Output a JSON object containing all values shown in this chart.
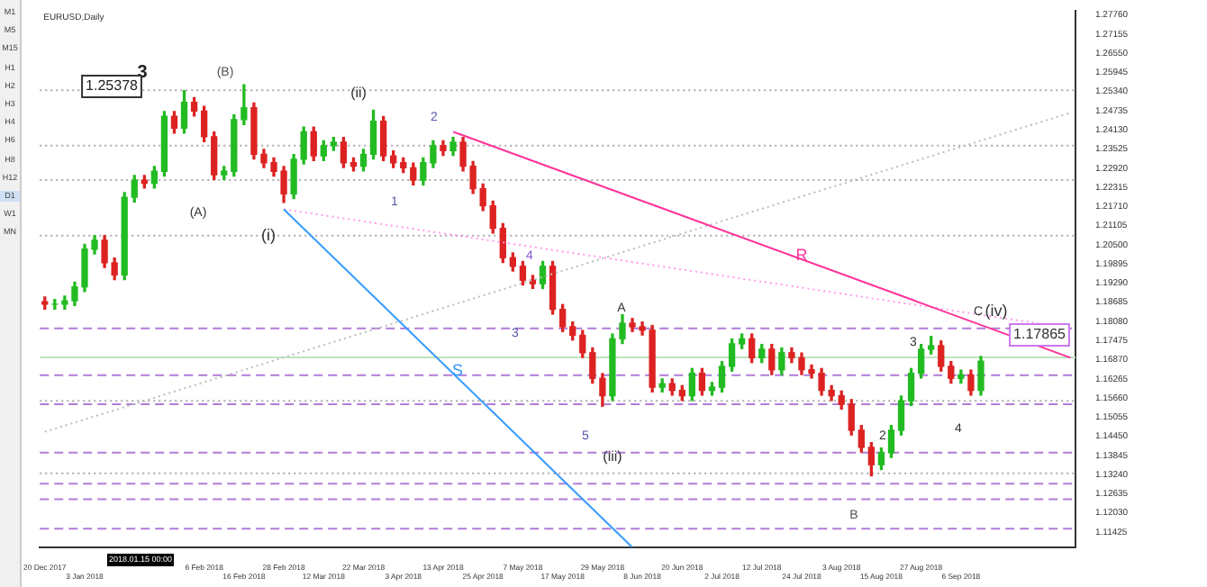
{
  "chart_data": {
    "type": "candlestick",
    "title": "EURUSD,Daily",
    "categories": [
      "20 Dec 2017",
      null,
      null,
      null,
      "3 Jan 2018",
      null,
      null,
      null,
      null,
      null,
      null,
      null,
      null,
      null,
      null,
      null,
      "6 Feb 2018",
      null,
      null,
      null,
      "16 Feb 2018",
      null,
      null,
      null,
      "28 Feb 2018",
      null,
      null,
      null,
      "12 Mar 2018",
      null,
      null,
      null,
      "22 Mar 2018",
      null,
      null,
      null,
      "3 Apr 2018",
      null,
      null,
      null,
      "13 Apr 2018",
      null,
      null,
      null,
      "25 Apr 2018",
      null,
      null,
      null,
      "7 May 2018",
      null,
      null,
      null,
      "17 May 2018",
      null,
      null,
      null,
      "29 May 2018",
      null,
      null,
      null,
      "8 Jun 2018",
      null,
      null,
      null,
      "20 Jun 2018",
      null,
      null,
      null,
      "2 Jul 2018",
      null,
      null,
      null,
      "12 Jul 2018",
      null,
      null,
      null,
      "24 Jul 2018",
      null,
      null,
      null,
      "3 Aug 2018",
      null,
      null,
      null,
      "15 Aug 2018",
      null,
      null,
      null,
      "27 Aug 2018",
      null,
      null,
      null,
      "6 Sep 2018",
      null,
      null,
      null,
      null,
      null,
      null,
      null,
      null,
      null,
      null,
      null
    ],
    "ohlc": [
      [
        1.187,
        1.1885,
        1.1847,
        1.1862
      ],
      [
        1.1862,
        1.1877,
        1.1847,
        1.1862
      ],
      [
        1.1862,
        1.1888,
        1.1847,
        1.1873
      ],
      [
        1.1873,
        1.1932,
        1.1858,
        1.1917
      ],
      [
        1.1917,
        1.2051,
        1.1902,
        1.2036
      ],
      [
        1.2036,
        1.2079,
        1.2021,
        1.2064
      ],
      [
        1.2064,
        1.2079,
        1.1978,
        1.1993
      ],
      [
        1.1993,
        1.2008,
        1.194,
        1.1955
      ],
      [
        1.1955,
        1.2215,
        1.194,
        1.22
      ],
      [
        1.22,
        1.2269,
        1.2185,
        1.2254
      ],
      [
        1.2254,
        1.2269,
        1.2229,
        1.2244
      ],
      [
        1.2244,
        1.2297,
        1.2229,
        1.2282
      ],
      [
        1.2282,
        1.2471,
        1.2267,
        1.2456
      ],
      [
        1.2456,
        1.2471,
        1.2403,
        1.2418
      ],
      [
        1.2418,
        1.2537,
        1.2403,
        1.25
      ],
      [
        1.25,
        1.2515,
        1.2457,
        1.2472
      ],
      [
        1.2472,
        1.2487,
        1.2376,
        1.2391
      ],
      [
        1.2391,
        1.2406,
        1.2256,
        1.2271
      ],
      [
        1.2271,
        1.2297,
        1.2256,
        1.2282
      ],
      [
        1.2282,
        1.246,
        1.2267,
        1.2445
      ],
      [
        1.2445,
        1.2555,
        1.243,
        1.2483
      ],
      [
        1.2483,
        1.2498,
        1.2321,
        1.2336
      ],
      [
        1.2336,
        1.2351,
        1.2294,
        1.2309
      ],
      [
        1.2309,
        1.2324,
        1.2267,
        1.2282
      ],
      [
        1.2282,
        1.2297,
        1.2184,
        1.2211
      ],
      [
        1.2211,
        1.2335,
        1.2196,
        1.232
      ],
      [
        1.232,
        1.2422,
        1.2305,
        1.2407
      ],
      [
        1.2407,
        1.2422,
        1.2316,
        1.2331
      ],
      [
        1.2331,
        1.2378,
        1.2316,
        1.2363
      ],
      [
        1.2363,
        1.2389,
        1.2348,
        1.2374
      ],
      [
        1.2374,
        1.2389,
        1.2294,
        1.2309
      ],
      [
        1.2309,
        1.2324,
        1.2283,
        1.2298
      ],
      [
        1.2298,
        1.2351,
        1.2283,
        1.2336
      ],
      [
        1.2336,
        1.2475,
        1.2321,
        1.244
      ],
      [
        1.244,
        1.2455,
        1.2316,
        1.2331
      ],
      [
        1.2331,
        1.2346,
        1.2294,
        1.2309
      ],
      [
        1.2309,
        1.2324,
        1.2278,
        1.2293
      ],
      [
        1.2293,
        1.2308,
        1.2239,
        1.2254
      ],
      [
        1.2254,
        1.2324,
        1.2239,
        1.2309
      ],
      [
        1.2309,
        1.2378,
        1.2294,
        1.2363
      ],
      [
        1.2363,
        1.2378,
        1.2332,
        1.2347
      ],
      [
        1.2347,
        1.2389,
        1.2332,
        1.2374
      ],
      [
        1.2374,
        1.2389,
        1.2283,
        1.2298
      ],
      [
        1.2298,
        1.2313,
        1.2212,
        1.2227
      ],
      [
        1.2227,
        1.2242,
        1.2158,
        1.2173
      ],
      [
        1.2173,
        1.2188,
        1.2087,
        1.2102
      ],
      [
        1.2102,
        1.2117,
        1.1994,
        1.2009
      ],
      [
        1.2009,
        1.2024,
        1.1967,
        1.1982
      ],
      [
        1.1982,
        1.1997,
        1.1923,
        1.1938
      ],
      [
        1.1938,
        1.1953,
        1.1912,
        1.1927
      ],
      [
        1.1927,
        1.1997,
        1.1912,
        1.1982
      ],
      [
        1.1982,
        1.1997,
        1.1831,
        1.1846
      ],
      [
        1.1846,
        1.1861,
        1.1776,
        1.1791
      ],
      [
        1.1791,
        1.1806,
        1.1749,
        1.1764
      ],
      [
        1.1764,
        1.1779,
        1.1694,
        1.1709
      ],
      [
        1.1709,
        1.1724,
        1.1613,
        1.1628
      ],
      [
        1.1628,
        1.1643,
        1.154,
        1.1573
      ],
      [
        1.1573,
        1.1768,
        1.1558,
        1.1753
      ],
      [
        1.1753,
        1.1829,
        1.1738,
        1.1802
      ],
      [
        1.1802,
        1.1817,
        1.1776,
        1.1791
      ],
      [
        1.1791,
        1.1806,
        1.1765,
        1.178
      ],
      [
        1.178,
        1.1795,
        1.1585,
        1.16
      ],
      [
        1.16,
        1.1626,
        1.1585,
        1.1611
      ],
      [
        1.1611,
        1.1626,
        1.1575,
        1.159
      ],
      [
        1.159,
        1.1605,
        1.1558,
        1.1573
      ],
      [
        1.1573,
        1.1659,
        1.1558,
        1.1644
      ],
      [
        1.1644,
        1.1659,
        1.1575,
        1.159
      ],
      [
        1.159,
        1.1615,
        1.1575,
        1.16
      ],
      [
        1.16,
        1.1681,
        1.1585,
        1.1666
      ],
      [
        1.1666,
        1.1752,
        1.1651,
        1.1737
      ],
      [
        1.1737,
        1.1768,
        1.1722,
        1.1753
      ],
      [
        1.1753,
        1.1768,
        1.1678,
        1.1693
      ],
      [
        1.1693,
        1.1735,
        1.1678,
        1.172
      ],
      [
        1.172,
        1.1735,
        1.164,
        1.1655
      ],
      [
        1.1655,
        1.1724,
        1.164,
        1.1709
      ],
      [
        1.1709,
        1.1724,
        1.1678,
        1.1693
      ],
      [
        1.1693,
        1.1708,
        1.164,
        1.1655
      ],
      [
        1.1655,
        1.167,
        1.1629,
        1.1644
      ],
      [
        1.1644,
        1.1659,
        1.1575,
        1.159
      ],
      [
        1.159,
        1.1605,
        1.1558,
        1.1573
      ],
      [
        1.1573,
        1.1588,
        1.1531,
        1.1546
      ],
      [
        1.1546,
        1.1561,
        1.1449,
        1.1464
      ],
      [
        1.1464,
        1.1479,
        1.1395,
        1.141
      ],
      [
        1.141,
        1.1425,
        1.132,
        1.1355
      ],
      [
        1.1355,
        1.1408,
        1.134,
        1.1393
      ],
      [
        1.1393,
        1.1479,
        1.1378,
        1.1464
      ],
      [
        1.1464,
        1.1572,
        1.1449,
        1.1557
      ],
      [
        1.1557,
        1.1659,
        1.1542,
        1.1644
      ],
      [
        1.1644,
        1.1735,
        1.1629,
        1.172
      ],
      [
        1.172,
        1.176,
        1.1705,
        1.1731
      ],
      [
        1.1731,
        1.1746,
        1.1651,
        1.1666
      ],
      [
        1.1666,
        1.1681,
        1.1613,
        1.1628
      ],
      [
        1.1628,
        1.1654,
        1.1613,
        1.1639
      ],
      [
        1.1639,
        1.1654,
        1.1575,
        1.159
      ],
      [
        1.159,
        1.1697,
        1.1575,
        1.1682
      ],
      null,
      null,
      null,
      null,
      null,
      null,
      null,
      null,
      null
    ],
    "series": [
      {
        "type": "line",
        "color": "#ff3399",
        "line_style": "solid",
        "values": [
          null,
          null,
          null,
          null,
          null,
          null,
          null,
          null,
          null,
          null,
          null,
          null,
          null,
          null,
          null,
          null,
          null,
          null,
          null,
          null,
          null,
          null,
          null,
          null,
          null,
          null,
          null,
          null,
          null,
          null,
          null,
          null,
          null,
          null,
          null,
          null,
          null,
          null,
          null,
          null,
          null,
          1.2407,
          null,
          null,
          null,
          null,
          null,
          null,
          null,
          null,
          null,
          null,
          null,
          null,
          null,
          null,
          null,
          null,
          null,
          null,
          null,
          null,
          null,
          null,
          null,
          null,
          null,
          null,
          null,
          null,
          null,
          null,
          null,
          null,
          null,
          null,
          null,
          null,
          null,
          null,
          null,
          null,
          null,
          null,
          null,
          null,
          null,
          null,
          null,
          null,
          null,
          null,
          null,
          null,
          null,
          null,
          null,
          null,
          null,
          null,
          null,
          null,
          null,
          1.1693
        ]
      },
      {
        "type": "line",
        "color": "#3399ff",
        "line_style": "solid",
        "values": [
          null,
          null,
          null,
          null,
          null,
          null,
          null,
          null,
          null,
          null,
          null,
          null,
          null,
          null,
          null,
          null,
          null,
          null,
          null,
          null,
          null,
          null,
          null,
          null,
          1.2162,
          null,
          null,
          null,
          null,
          null,
          null,
          null,
          null,
          null,
          null,
          null,
          null,
          null,
          null,
          null,
          null,
          null,
          null,
          null,
          null,
          null,
          null,
          null,
          null,
          null,
          null,
          null,
          null,
          null,
          null,
          null,
          null,
          null,
          null,
          1.1094,
          null,
          null,
          null,
          null,
          null,
          null,
          null,
          null,
          null,
          null,
          null,
          null,
          null,
          null,
          null,
          null,
          null,
          null,
          null,
          null,
          null,
          null,
          null,
          null,
          null,
          null,
          null,
          null,
          null,
          null,
          null,
          null,
          null,
          null,
          null,
          null,
          null,
          null,
          null,
          null,
          null,
          null,
          null,
          null
        ]
      },
      {
        "type": "line",
        "color": "#ff99ee",
        "line_style": "dotted",
        "values": [
          null,
          null,
          null,
          null,
          null,
          null,
          null,
          null,
          null,
          null,
          null,
          null,
          null,
          null,
          null,
          null,
          null,
          null,
          null,
          null,
          null,
          null,
          null,
          null,
          1.2162,
          null,
          null,
          null,
          null,
          null,
          null,
          null,
          null,
          null,
          null,
          null,
          null,
          null,
          null,
          null,
          null,
          null,
          null,
          null,
          null,
          null,
          null,
          null,
          null,
          null,
          null,
          null,
          null,
          null,
          null,
          null,
          null,
          null,
          null,
          null,
          null,
          null,
          null,
          null,
          null,
          null,
          null,
          null,
          null,
          null,
          null,
          null,
          null,
          null,
          null,
          null,
          null,
          null,
          null,
          null,
          null,
          null,
          null,
          null,
          null,
          null,
          null,
          null,
          null,
          null,
          null,
          null,
          null,
          null,
          null,
          null,
          null,
          null,
          null,
          null,
          null,
          null,
          null,
          1.1786
        ]
      },
      {
        "type": "line",
        "color": "#bbbbbb",
        "line_style": "dotted",
        "values": [
          1.1459,
          null,
          null,
          null,
          null,
          null,
          null,
          null,
          null,
          null,
          null,
          null,
          null,
          null,
          null,
          null,
          null,
          null,
          null,
          null,
          null,
          null,
          null,
          null,
          null,
          null,
          null,
          null,
          null,
          null,
          null,
          null,
          null,
          null,
          null,
          null,
          null,
          null,
          null,
          null,
          null,
          null,
          null,
          null,
          null,
          null,
          null,
          null,
          null,
          null,
          null,
          null,
          null,
          null,
          null,
          null,
          null,
          null,
          null,
          null,
          null,
          null,
          null,
          null,
          null,
          null,
          null,
          null,
          null,
          null,
          null,
          null,
          null,
          null,
          null,
          null,
          null,
          null,
          null,
          null,
          null,
          null,
          null,
          null,
          null,
          null,
          null,
          null,
          null,
          null,
          null,
          null,
          null,
          null,
          null,
          null,
          null,
          null,
          null,
          null,
          null,
          null,
          null,
          1.2467
        ]
      }
    ],
    "ylim": [
      1.1094,
      1.2789
    ],
    "yticks": [
      {
        "value": 1.2776,
        "label": "1.27760"
      },
      {
        "value": 1.27155,
        "label": "1.27155"
      },
      {
        "value": 1.2655,
        "label": "1.26550"
      },
      {
        "value": 1.25945,
        "label": "1.25945"
      },
      {
        "value": 1.2534,
        "label": "1.25340"
      },
      {
        "value": 1.24735,
        "label": "1.24735"
      },
      {
        "value": 1.2413,
        "label": "1.24130"
      },
      {
        "value": 1.23525,
        "label": "1.23525"
      },
      {
        "value": 1.2292,
        "label": "1.22920"
      },
      {
        "value": 1.22315,
        "label": "1.22315"
      },
      {
        "value": 1.2171,
        "label": "1.21710"
      },
      {
        "value": 1.21105,
        "label": "1.21105"
      },
      {
        "value": 1.205,
        "label": "1.20500"
      },
      {
        "value": 1.19895,
        "label": "1.19895"
      },
      {
        "value": 1.1929,
        "label": "1.19290"
      },
      {
        "value": 1.18685,
        "label": "1.18685"
      },
      {
        "value": 1.1808,
        "label": "1.18080"
      },
      {
        "value": 1.17475,
        "label": "1.17475"
      },
      {
        "value": 1.1687,
        "label": "1.16870"
      },
      {
        "value": 1.16265,
        "label": "1.16265"
      },
      {
        "value": 1.1566,
        "label": "1.15660"
      },
      {
        "value": 1.15055,
        "label": "1.15055"
      },
      {
        "value": 1.1445,
        "label": "1.14450"
      },
      {
        "value": 1.13845,
        "label": "1.13845"
      },
      {
        "value": 1.1324,
        "label": "1.13240"
      },
      {
        "value": 1.12635,
        "label": "1.12635"
      },
      {
        "value": 1.1203,
        "label": "1.12030"
      },
      {
        "value": 1.11425,
        "label": "1.11425"
      }
    ],
    "ref_lines": [
      {
        "axis": "y",
        "value": 1.25378,
        "color": "#aaaaaa",
        "line_style": "dotted"
      },
      {
        "axis": "y",
        "value": 1.2363,
        "color": "#aaaaaa",
        "line_style": "dotted"
      },
      {
        "axis": "y",
        "value": 1.2254,
        "color": "#aaaaaa",
        "line_style": "dotted"
      },
      {
        "axis": "y",
        "value": 1.2079,
        "color": "#aaaaaa",
        "line_style": "dotted"
      },
      {
        "axis": "y",
        "value": 1.1557,
        "color": "#aaaaaa",
        "line_style": "dotted"
      },
      {
        "axis": "y",
        "value": 1.1328,
        "color": "#aaaaaa",
        "line_style": "dotted"
      },
      {
        "axis": "y",
        "value": 1.1694,
        "color": "#bfe3bf",
        "line_style": "solid"
      },
      {
        "axis": "y",
        "value": 1.1786,
        "color": "#b07cd8",
        "line_style": "dashed"
      },
      {
        "axis": "y",
        "value": 1.1638,
        "color": "#b07cd8",
        "line_style": "dashed"
      },
      {
        "axis": "y",
        "value": 1.1546,
        "color": "#b07cd8",
        "line_style": "dashed"
      },
      {
        "axis": "y",
        "value": 1.1393,
        "color": "#b07cd8",
        "line_style": "dashed"
      },
      {
        "axis": "y",
        "value": 1.1295,
        "color": "#b07cd8",
        "line_style": "dashed"
      },
      {
        "axis": "y",
        "value": 1.1246,
        "color": "#b07cd8",
        "line_style": "dashed"
      },
      {
        "axis": "y",
        "value": 1.1153,
        "color": "#b07cd8",
        "line_style": "dashed"
      }
    ],
    "annotations": [
      "3",
      "(B)",
      "(A)",
      "(i)",
      "(ii)",
      "1",
      "2",
      "4",
      "3",
      "5",
      "(iii)",
      "A",
      "B",
      "2",
      "3",
      "4",
      "C",
      "(iv)",
      "R",
      "S",
      "1.25378",
      "1.17865",
      "2018.01.15 00:00",
      "M1",
      "M5",
      "M15",
      "H1",
      "H2",
      "H3",
      "H4",
      "H6",
      "H8",
      "H12",
      "D1",
      "W1",
      "MN"
    ],
    "grid": false,
    "legend": false
  }
}
